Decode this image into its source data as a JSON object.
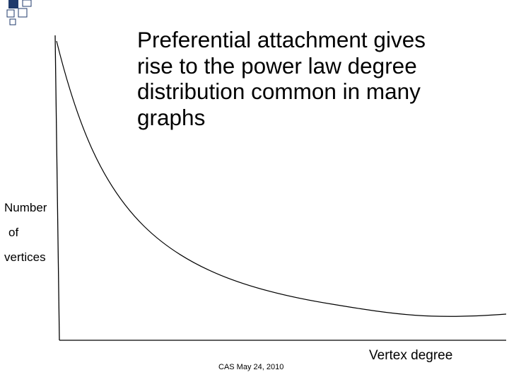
{
  "slide": {
    "title_lines": [
      "Preferential attachment gives",
      "rise to the power law degree",
      "distribution common in many",
      "graphs"
    ],
    "footer": "CAS May 24, 2010"
  },
  "diagram": {
    "ylabel_lines": [
      "Number",
      "of",
      "vertices"
    ],
    "xlabel": "Vertex degree",
    "curve_shape": "power-law decay"
  },
  "colors": {
    "accent": "#1f3a6b",
    "background": "#ffffff",
    "text": "#000000"
  }
}
